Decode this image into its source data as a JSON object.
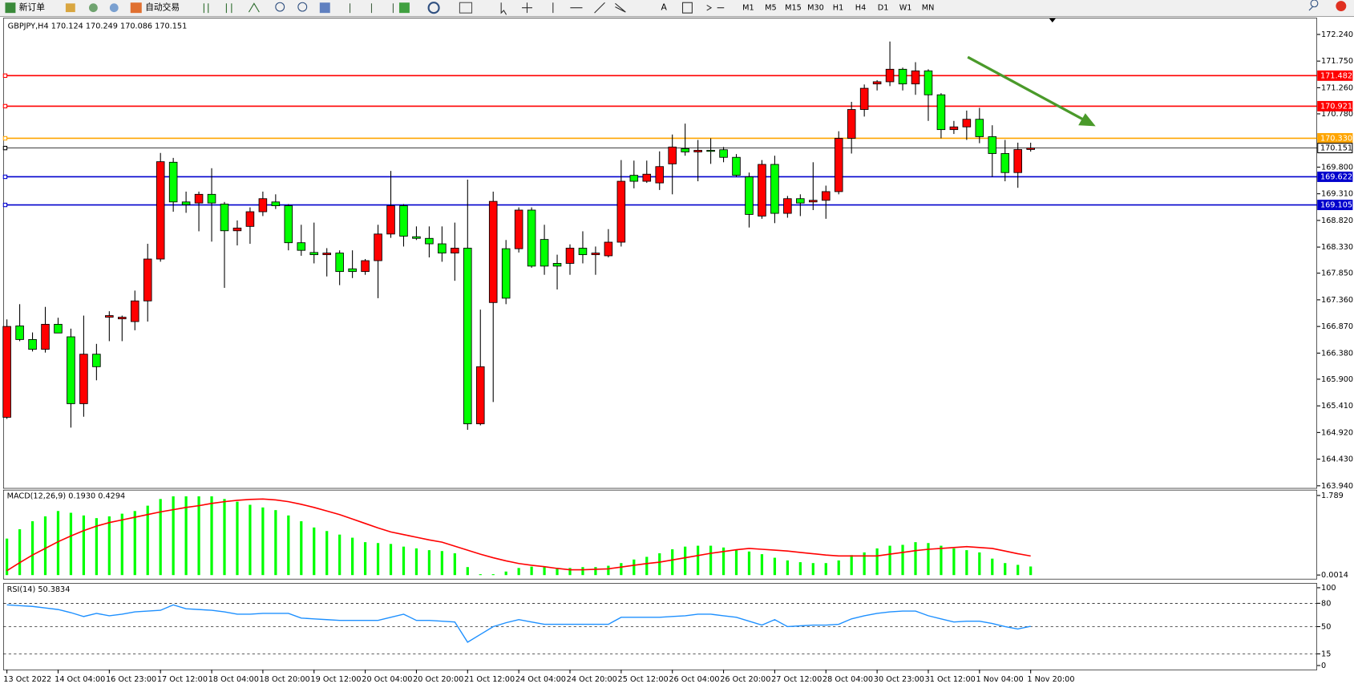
{
  "toolbar": {
    "new_order": "新订单",
    "auto_trading": "自动交易",
    "timeframes": [
      "M1",
      "M5",
      "M15",
      "M30",
      "H1",
      "H4",
      "D1",
      "W1",
      "MN"
    ]
  },
  "chart_data": [
    {
      "type": "candlestick",
      "title": "GBPJPY,H4",
      "categories": [
        "13 Oct 2022",
        null,
        null,
        null,
        "14 Oct 04:00",
        null,
        null,
        null,
        "16 Oct 23:00",
        null,
        null,
        null,
        "17 Oct 12:00",
        null,
        null,
        null,
        "18 Oct 04:00",
        null,
        null,
        null,
        "18 Oct 20:00",
        null,
        null,
        null,
        "19 Oct 12:00",
        null,
        null,
        null,
        "20 Oct 04:00",
        null,
        null,
        null,
        "20 Oct 20:00",
        null,
        null,
        null,
        "21 Oct 12:00",
        null,
        null,
        null,
        "24 Oct 04:00",
        null,
        null,
        null,
        "24 Oct 20:00",
        null,
        null,
        null,
        "25 Oct 12:00",
        null,
        null,
        null,
        "26 Oct 04:00",
        null,
        null,
        null,
        "26 Oct 20:00",
        null,
        null,
        null,
        "27 Oct 12:00",
        null,
        null,
        null,
        "28 Oct 04:00",
        null,
        null,
        null,
        "30 Oct 23:00",
        null,
        null,
        null,
        "31 Oct 12:00",
        null,
        null,
        null,
        "1 Nov 04:00",
        null,
        null,
        null,
        "1 Nov 20:00"
      ],
      "open": [
        165.2,
        166.88,
        166.63,
        166.45,
        166.91,
        166.68,
        165.45,
        166.36,
        167.04,
        167.01,
        166.96,
        167.34,
        168.11,
        169.89,
        169.16,
        169.14,
        169.3,
        169.12,
        168.63,
        168.71,
        168.98,
        169.16,
        169.09,
        168.41,
        168.23,
        168.19,
        168.22,
        167.93,
        167.88,
        168.08,
        168.57,
        169.09,
        168.52,
        168.49,
        168.39,
        168.22,
        168.31,
        165.08,
        167.31,
        168.3,
        168.3,
        169.01,
        168.47,
        168.03,
        168.03,
        168.31,
        168.19,
        168.17,
        168.42,
        169.65,
        169.54,
        169.51,
        169.86,
        170.14,
        170.08,
        170.11,
        170.12,
        169.98,
        169.62,
        168.9,
        169.85,
        168.95,
        169.22,
        169.16,
        169.19,
        169.35,
        170.33,
        170.86,
        171.33,
        171.37,
        171.6,
        171.33,
        171.57,
        171.13,
        170.49,
        170.54,
        170.68,
        170.36,
        170.05,
        169.7,
        170.124
      ],
      "high": [
        167.0,
        167.28,
        166.76,
        167.23,
        167.03,
        166.83,
        167.07,
        166.55,
        167.15,
        167.07,
        167.53,
        168.39,
        170.06,
        169.97,
        169.35,
        169.35,
        169.78,
        169.16,
        168.82,
        169.06,
        169.35,
        169.3,
        169.12,
        168.74,
        168.78,
        168.31,
        168.27,
        168.27,
        168.11,
        168.74,
        169.73,
        169.12,
        168.71,
        168.71,
        168.71,
        168.78,
        169.57,
        167.18,
        169.35,
        168.46,
        169.06,
        169.06,
        168.74,
        168.19,
        168.38,
        168.62,
        168.34,
        168.66,
        169.93,
        169.92,
        169.92,
        170.09,
        170.4,
        170.6,
        170.3,
        170.33,
        170.17,
        170.04,
        169.7,
        169.93,
        170.01,
        169.27,
        169.3,
        169.89,
        169.46,
        170.46,
        171.0,
        171.32,
        171.4,
        172.11,
        171.63,
        171.73,
        171.6,
        171.16,
        170.65,
        170.84,
        170.89,
        170.57,
        170.3,
        170.25,
        170.249
      ],
      "low": [
        165.17,
        166.6,
        166.41,
        166.39,
        166.75,
        165.01,
        165.21,
        165.88,
        166.6,
        166.6,
        166.8,
        166.96,
        168.06,
        168.98,
        168.96,
        168.62,
        168.43,
        167.58,
        168.36,
        168.39,
        168.9,
        169.03,
        168.27,
        168.17,
        168.03,
        167.79,
        167.63,
        167.76,
        167.82,
        167.39,
        168.5,
        168.34,
        168.46,
        168.14,
        168.06,
        167.71,
        164.97,
        165.05,
        165.48,
        167.28,
        168.23,
        167.95,
        167.82,
        167.55,
        167.82,
        168.03,
        167.82,
        168.14,
        168.34,
        169.41,
        169.51,
        169.38,
        169.3,
        170.01,
        169.54,
        169.86,
        169.89,
        169.62,
        168.69,
        168.85,
        168.77,
        168.87,
        168.9,
        169.01,
        168.85,
        169.3,
        170.05,
        170.73,
        171.21,
        171.29,
        171.21,
        171.13,
        170.65,
        170.33,
        170.41,
        170.3,
        170.24,
        169.62,
        169.54,
        169.42,
        170.086
      ],
      "close": [
        166.87,
        166.63,
        166.45,
        166.91,
        166.75,
        165.45,
        166.36,
        166.13,
        167.07,
        167.04,
        167.34,
        168.11,
        169.9,
        169.16,
        169.11,
        169.3,
        169.14,
        168.63,
        168.68,
        168.98,
        169.22,
        169.09,
        168.41,
        168.27,
        168.19,
        168.22,
        167.88,
        167.88,
        168.08,
        168.57,
        169.09,
        168.53,
        168.49,
        168.39,
        168.22,
        168.31,
        165.08,
        166.13,
        169.17,
        167.39,
        169.01,
        167.98,
        167.98,
        167.98,
        168.31,
        168.19,
        168.22,
        168.42,
        169.54,
        169.54,
        169.67,
        169.81,
        170.17,
        170.08,
        170.11,
        170.09,
        169.98,
        169.65,
        168.93,
        169.85,
        168.95,
        169.22,
        169.14,
        169.19,
        169.35,
        170.33,
        170.86,
        171.25,
        171.37,
        171.6,
        171.33,
        171.57,
        171.13,
        170.49,
        170.54,
        170.68,
        170.36,
        170.05,
        169.7,
        170.124,
        170.151
      ],
      "up_color": "#ff0000",
      "down_color": "#00ff00",
      "ylim": [
        163.89,
        172.53
      ],
      "yticks": [
        {
          "value": 172.24,
          "label": "172.240"
        },
        {
          "value": 171.75,
          "label": "171.750"
        },
        {
          "value": 171.26,
          "label": "171.260"
        },
        {
          "value": 170.78,
          "label": "170.780"
        },
        {
          "value": 169.8,
          "label": "169.800"
        },
        {
          "value": 169.31,
          "label": "169.310"
        },
        {
          "value": 168.82,
          "label": "168.820"
        },
        {
          "value": 168.33,
          "label": "168.330"
        },
        {
          "value": 167.85,
          "label": "167.850"
        },
        {
          "value": 167.36,
          "label": "167.360"
        },
        {
          "value": 166.87,
          "label": "166.870"
        },
        {
          "value": 166.38,
          "label": "166.380"
        },
        {
          "value": 165.9,
          "label": "165.900"
        },
        {
          "value": 165.41,
          "label": "165.410"
        },
        {
          "value": 164.92,
          "label": "164.920"
        },
        {
          "value": 164.43,
          "label": "164.430"
        },
        {
          "value": 163.94,
          "label": "163.940"
        }
      ],
      "hlines": [
        {
          "value": 171.482,
          "color": "#ff0000"
        },
        {
          "value": 170.921,
          "color": "#ff0000"
        },
        {
          "value": 170.33,
          "label": "170.330",
          "color": "#ffa500"
        },
        {
          "value": 170.151,
          "color": "#000000"
        },
        {
          "value": 169.622,
          "color": "#0000cd"
        },
        {
          "value": 169.105,
          "color": "#0000cd"
        }
      ]
    },
    {
      "type": "macd",
      "title": "MACD(12,26,9)",
      "series": [
        {
          "color": "#00ff00",
          "current_label": "0.1930",
          "values": [
            0.82,
            1.03,
            1.21,
            1.32,
            1.44,
            1.4,
            1.34,
            1.28,
            1.32,
            1.38,
            1.44,
            1.56,
            1.71,
            1.77,
            1.77,
            1.77,
            1.77,
            1.71,
            1.65,
            1.58,
            1.52,
            1.46,
            1.34,
            1.21,
            1.07,
            0.99,
            0.91,
            0.84,
            0.74,
            0.72,
            0.7,
            0.64,
            0.6,
            0.56,
            0.54,
            0.49,
            0.18,
            0.02,
            0.02,
            0.08,
            0.16,
            0.19,
            0.18,
            0.16,
            0.16,
            0.18,
            0.18,
            0.21,
            0.27,
            0.35,
            0.41,
            0.49,
            0.58,
            0.64,
            0.66,
            0.66,
            0.62,
            0.58,
            0.53,
            0.47,
            0.39,
            0.33,
            0.29,
            0.27,
            0.27,
            0.33,
            0.45,
            0.51,
            0.6,
            0.66,
            0.68,
            0.74,
            0.72,
            0.66,
            0.6,
            0.56,
            0.51,
            0.37,
            0.27,
            0.23,
            0.193
          ]
        },
        {
          "color": "#ff0000",
          "values": [
            0.1,
            0.28,
            0.45,
            0.6,
            0.75,
            0.88,
            1.0,
            1.1,
            1.18,
            1.24,
            1.3,
            1.36,
            1.42,
            1.47,
            1.52,
            1.56,
            1.61,
            1.65,
            1.68,
            1.7,
            1.71,
            1.69,
            1.65,
            1.59,
            1.52,
            1.44,
            1.36,
            1.26,
            1.16,
            1.06,
            0.97,
            0.91,
            0.85,
            0.79,
            0.74,
            0.65,
            0.56,
            0.47,
            0.39,
            0.32,
            0.26,
            0.22,
            0.19,
            0.15,
            0.12,
            0.12,
            0.13,
            0.14,
            0.18,
            0.22,
            0.26,
            0.29,
            0.34,
            0.39,
            0.44,
            0.49,
            0.53,
            0.57,
            0.6,
            0.58,
            0.56,
            0.54,
            0.51,
            0.48,
            0.45,
            0.43,
            0.43,
            0.43,
            0.43,
            0.47,
            0.51,
            0.55,
            0.58,
            0.6,
            0.62,
            0.64,
            0.62,
            0.6,
            0.54,
            0.48,
            0.4294
          ]
        }
      ],
      "ylim": [
        -0.09,
        1.93
      ],
      "yticks": [
        1.789,
        0.0014
      ]
    },
    {
      "type": "line",
      "title": "RSI(14)",
      "series": [
        {
          "color": "#1e90ff",
          "values": [
            78,
            77,
            76,
            74,
            72,
            68,
            63,
            67,
            64,
            66,
            69,
            70,
            71,
            78,
            73,
            72,
            71,
            69,
            66,
            66,
            67,
            67,
            67,
            61,
            60,
            59,
            58,
            58,
            58,
            58,
            62,
            66,
            58,
            58,
            57,
            56,
            30,
            40,
            50,
            55,
            59,
            56,
            53,
            53,
            53,
            53,
            53,
            53,
            62,
            62,
            62,
            62,
            63,
            64,
            66,
            66,
            64,
            62,
            57,
            52,
            59,
            50,
            51,
            52,
            52,
            53,
            60,
            64,
            67,
            69,
            70,
            70,
            64,
            60,
            56,
            57,
            57,
            54,
            50,
            47,
            50.3834
          ]
        }
      ],
      "ylim": [
        0,
        100
      ],
      "yticks": [
        100,
        80,
        50,
        15,
        0
      ]
    }
  ]
}
